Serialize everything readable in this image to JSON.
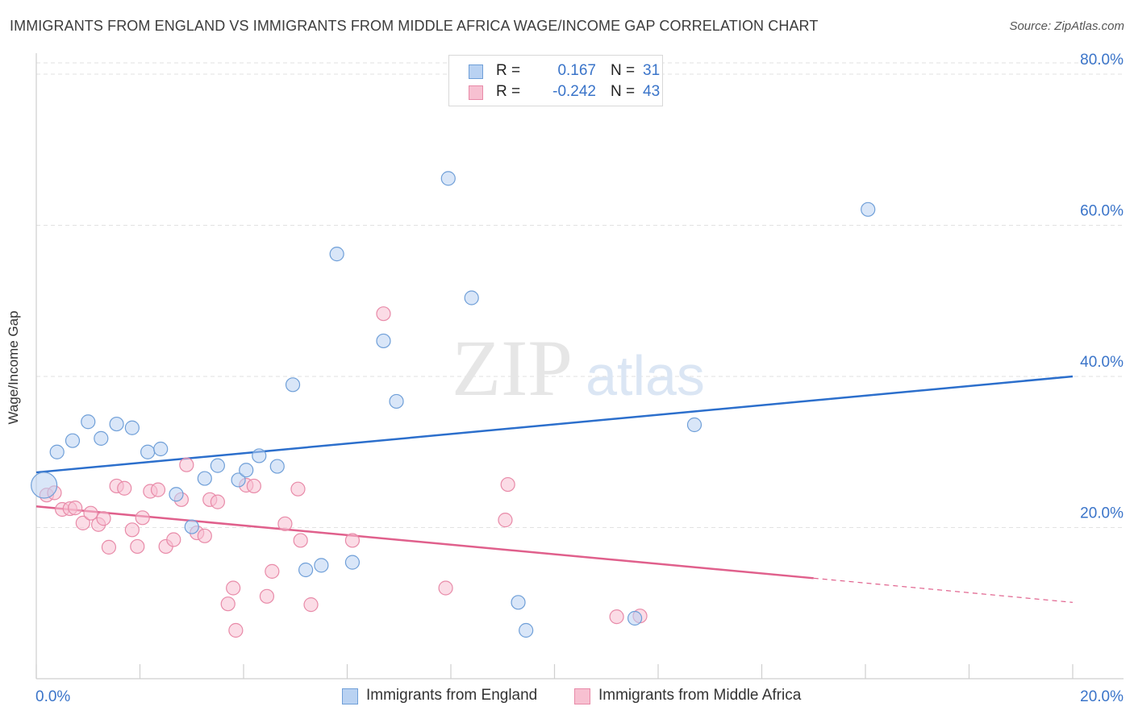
{
  "header": {
    "title": "IMMIGRANTS FROM ENGLAND VS IMMIGRANTS FROM MIDDLE AFRICA WAGE/INCOME GAP CORRELATION CHART",
    "source": "Source: ZipAtlas.com"
  },
  "watermark": {
    "zip": "ZIP",
    "atlas": "atlas"
  },
  "legend_top": {
    "rows": [
      {
        "r_label": "R =",
        "r_value": "0.167",
        "n_label": "N =",
        "n_value": "31"
      },
      {
        "r_label": "R =",
        "r_value": "-0.242",
        "n_label": "N =",
        "n_value": "43"
      }
    ]
  },
  "legend_bottom": {
    "england": "Immigrants from England",
    "africa": "Immigrants from Middle Africa"
  },
  "chart_data": {
    "type": "scatter",
    "title": "IMMIGRANTS FROM ENGLAND VS IMMIGRANTS FROM MIDDLE AFRICA WAGE/INCOME GAP CORRELATION CHART",
    "xlabel": "",
    "ylabel": "Wage/Income Gap",
    "xlim": [
      0,
      20
    ],
    "ylim": [
      0,
      82
    ],
    "x_tick_labels": [
      "0.0%",
      "20.0%"
    ],
    "y_ticks": [
      20,
      40,
      60,
      80
    ],
    "y_tick_labels": [
      "20.0%",
      "40.0%",
      "60.0%",
      "80.0%"
    ],
    "grid": "horizontal dashed",
    "colors": {
      "england_fill": "#b9d2f2",
      "england_stroke": "#6f9fd8",
      "england_line": "#2c6fcc",
      "africa_fill": "#f7c0d1",
      "africa_stroke": "#e88aa8",
      "africa_line": "#e0608c",
      "tick_label": "#3a74c9"
    },
    "series": [
      {
        "name": "Immigrants from England",
        "points": [
          [
            0.4,
            30.0
          ],
          [
            0.7,
            31.5
          ],
          [
            1.0,
            34.0
          ],
          [
            1.25,
            31.8
          ],
          [
            1.55,
            33.7
          ],
          [
            1.85,
            33.2
          ],
          [
            2.15,
            30.0
          ],
          [
            2.4,
            30.4
          ],
          [
            2.7,
            24.4
          ],
          [
            3.0,
            20.1
          ],
          [
            3.25,
            26.5
          ],
          [
            3.5,
            28.2
          ],
          [
            3.9,
            26.3
          ],
          [
            4.05,
            27.6
          ],
          [
            4.3,
            29.5
          ],
          [
            4.65,
            28.1
          ],
          [
            4.95,
            38.9
          ],
          [
            5.2,
            14.4
          ],
          [
            5.5,
            15.0
          ],
          [
            5.8,
            56.2
          ],
          [
            6.1,
            15.4
          ],
          [
            6.7,
            44.7
          ],
          [
            6.95,
            36.7
          ],
          [
            7.95,
            66.2
          ],
          [
            8.4,
            50.4
          ],
          [
            9.3,
            10.1
          ],
          [
            9.45,
            6.4
          ],
          [
            11.55,
            8.0
          ],
          [
            12.7,
            33.6
          ],
          [
            16.05,
            62.1
          ],
          [
            0.15,
            25.6
          ]
        ],
        "trend": {
          "x": [
            0,
            20
          ],
          "y": [
            27.3,
            40.0
          ]
        }
      },
      {
        "name": "Immigrants from Middle Africa",
        "points": [
          [
            0.2,
            24.3
          ],
          [
            0.35,
            24.6
          ],
          [
            0.5,
            22.4
          ],
          [
            0.65,
            22.5
          ],
          [
            0.75,
            22.6
          ],
          [
            0.9,
            20.6
          ],
          [
            1.05,
            21.9
          ],
          [
            1.2,
            20.4
          ],
          [
            1.3,
            21.2
          ],
          [
            1.4,
            17.4
          ],
          [
            1.55,
            25.5
          ],
          [
            1.7,
            25.2
          ],
          [
            1.85,
            19.7
          ],
          [
            1.95,
            17.5
          ],
          [
            2.05,
            21.3
          ],
          [
            2.2,
            24.8
          ],
          [
            2.35,
            25.0
          ],
          [
            2.5,
            17.5
          ],
          [
            2.65,
            18.4
          ],
          [
            2.8,
            23.7
          ],
          [
            2.9,
            28.3
          ],
          [
            3.1,
            19.3
          ],
          [
            3.25,
            18.9
          ],
          [
            3.35,
            23.7
          ],
          [
            3.5,
            23.4
          ],
          [
            3.7,
            9.9
          ],
          [
            3.8,
            12.0
          ],
          [
            3.85,
            6.4
          ],
          [
            4.05,
            25.6
          ],
          [
            4.2,
            25.5
          ],
          [
            4.45,
            10.9
          ],
          [
            4.55,
            14.2
          ],
          [
            4.8,
            20.5
          ],
          [
            5.05,
            25.1
          ],
          [
            5.1,
            18.3
          ],
          [
            5.3,
            9.8
          ],
          [
            6.1,
            18.3
          ],
          [
            6.7,
            48.3
          ],
          [
            7.9,
            12.0
          ],
          [
            9.05,
            21.0
          ],
          [
            9.1,
            25.7
          ],
          [
            11.2,
            8.2
          ],
          [
            11.65,
            8.3
          ]
        ],
        "trend": {
          "x": [
            0,
            15.0
          ],
          "y": [
            22.8,
            13.3
          ],
          "dashed_to": {
            "x": 20,
            "y": 10.1
          }
        }
      }
    ]
  }
}
